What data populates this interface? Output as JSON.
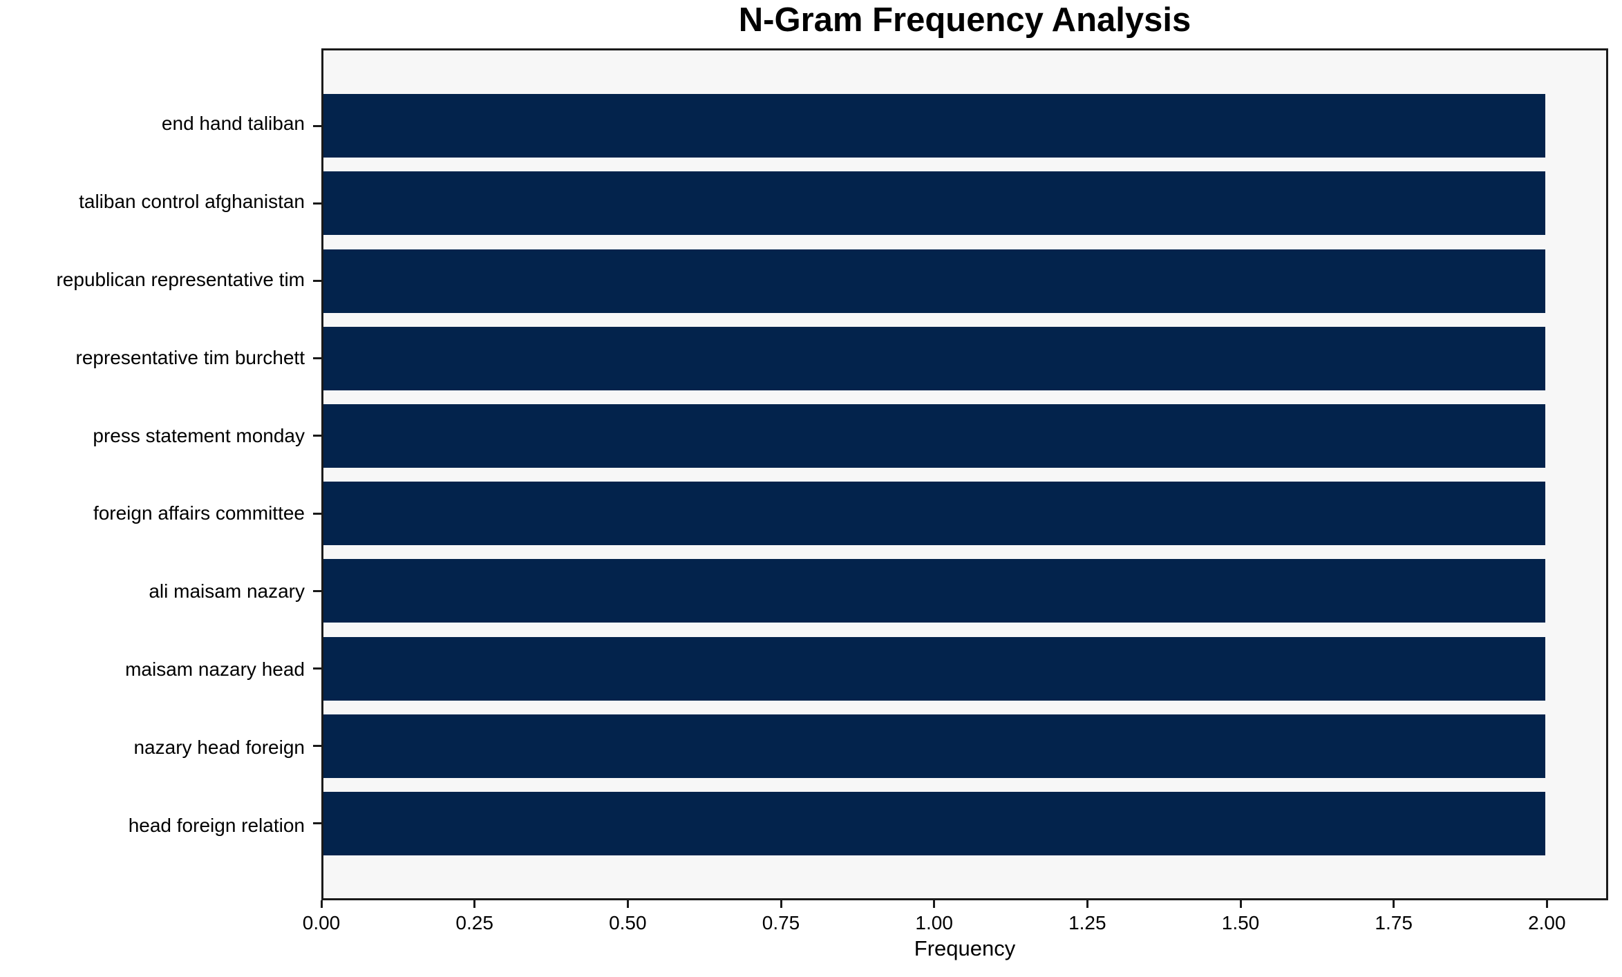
{
  "chart_data": {
    "type": "bar",
    "orientation": "horizontal",
    "title": "N-Gram Frequency Analysis",
    "xlabel": "Frequency",
    "ylabel": "",
    "categories": [
      "end hand taliban",
      "taliban control afghanistan",
      "republican representative tim",
      "representative tim burchett",
      "press statement monday",
      "foreign affairs committee",
      "ali maisam nazary",
      "maisam nazary head",
      "nazary head foreign",
      "head foreign relation"
    ],
    "values": [
      2,
      2,
      2,
      2,
      2,
      2,
      2,
      2,
      2,
      2
    ],
    "xlim": [
      0,
      2.1
    ],
    "xticks": [
      0,
      0.25,
      0.5,
      0.75,
      1.0,
      1.25,
      1.5,
      1.75,
      2.0
    ],
    "xtick_labels": [
      "0.00",
      "0.25",
      "0.50",
      "0.75",
      "1.00",
      "1.25",
      "1.50",
      "1.75",
      "2.00"
    ],
    "grid": false,
    "legend_position": "none",
    "colors": {
      "bar": "#03234c",
      "plot_background": "#f7f7f7",
      "figure_background": "#ffffff",
      "spine": "#1a1a1a",
      "text": "#000000"
    }
  }
}
